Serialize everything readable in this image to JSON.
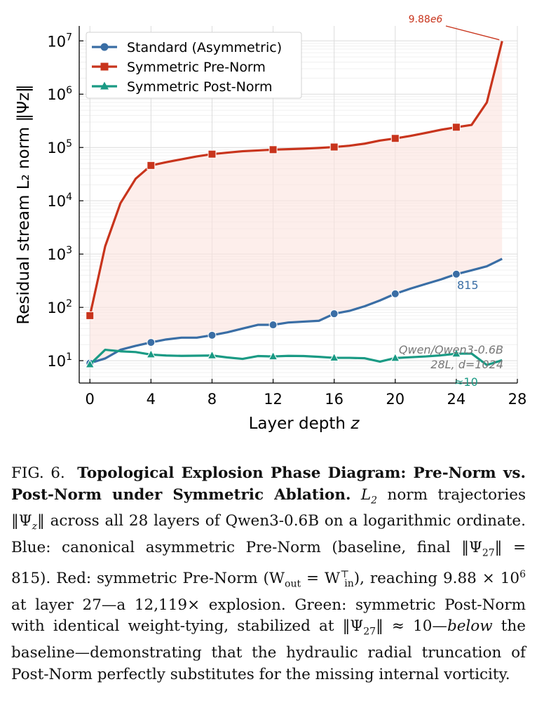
{
  "chart_data": {
    "type": "line",
    "xlabel": "Layer depth z",
    "ylabel": "Residual stream L₂ norm ‖Ψz‖",
    "yscale": "log",
    "xlim": [
      -0.7,
      28.0
    ],
    "ylim_log10": [
      0.58,
      7.28
    ],
    "x_ticks": [
      0,
      4,
      8,
      12,
      16,
      20,
      24,
      28
    ],
    "x_tick_labels": [
      "0",
      "4",
      "8",
      "12",
      "16",
      "20",
      "24",
      "28"
    ],
    "y_ticks": [
      10,
      100,
      1000,
      10000,
      100000,
      1000000,
      10000000
    ],
    "y_tick_labels": [
      {
        "base": "10",
        "exp": "1"
      },
      {
        "base": "10",
        "exp": "2"
      },
      {
        "base": "10",
        "exp": "3"
      },
      {
        "base": "10",
        "exp": "4"
      },
      {
        "base": "10",
        "exp": "5"
      },
      {
        "base": "10",
        "exp": "6"
      },
      {
        "base": "10",
        "exp": "7"
      }
    ],
    "grid": true,
    "legend_position": "top-left",
    "series": [
      {
        "name": "Standard (Asymmetric)",
        "color": "#3a6ea5",
        "marker": "circle",
        "marker_every": 4,
        "x": [
          0,
          1,
          2,
          3,
          4,
          5,
          6,
          7,
          8,
          9,
          10,
          11,
          12,
          13,
          14,
          15,
          16,
          17,
          18,
          19,
          20,
          21,
          22,
          23,
          24,
          25,
          26,
          27
        ],
        "y": [
          9,
          11,
          16,
          19,
          22,
          25,
          27,
          27,
          30,
          34,
          40,
          47,
          47,
          52,
          54,
          56,
          76,
          86,
          105,
          135,
          180,
          225,
          275,
          335,
          420,
          495,
          590,
          815
        ]
      },
      {
        "name": "Symmetric Pre-Norm",
        "color": "#c8341c",
        "marker": "square",
        "marker_every": 4,
        "x": [
          0,
          1,
          2,
          3,
          4,
          5,
          6,
          7,
          8,
          9,
          10,
          11,
          12,
          13,
          14,
          15,
          16,
          17,
          18,
          19,
          20,
          21,
          22,
          23,
          24,
          25,
          26,
          27
        ],
        "y": [
          70,
          1400,
          9000,
          26000,
          46000,
          53000,
          60000,
          68000,
          75000,
          80000,
          85000,
          88000,
          91000,
          93000,
          95000,
          98000,
          102000,
          108000,
          118000,
          135000,
          148000,
          165000,
          188000,
          215000,
          240000,
          265000,
          700000,
          9880000
        ]
      },
      {
        "name": "Symmetric Post-Norm",
        "color": "#1a9a84",
        "marker": "triangle",
        "marker_every": 4,
        "x": [
          0,
          1,
          2,
          3,
          4,
          5,
          6,
          7,
          8,
          9,
          10,
          11,
          12,
          13,
          14,
          15,
          16,
          17,
          18,
          19,
          20,
          21,
          22,
          23,
          24,
          25,
          26,
          27
        ],
        "y": [
          8.5,
          16,
          15,
          14.5,
          13,
          12.5,
          12.3,
          12.4,
          12.5,
          11.5,
          10.8,
          12.2,
          12.0,
          12.3,
          12.2,
          11.8,
          11.3,
          11.3,
          11.1,
          9.6,
          11.2,
          11.6,
          12.0,
          12.6,
          13.5,
          13.6,
          8.3,
          10.2
        ]
      }
    ],
    "annotations": {
      "peak_label": "9.88e6",
      "peak_label_base": "9.88",
      "peak_label_exp": "e6",
      "standard_final_label": "815",
      "post_norm_final_label": "≈10",
      "model_label_line1": "Qwen/Qwen3-0.6B",
      "model_label_line2": "28L, d=1024"
    }
  },
  "caption": {
    "label": "FIG. 6.",
    "title": "Topological Explosion Phase Diagram: Pre-Norm vs. Post-Norm under Symmetric Ablation.",
    "body_1": "norm trajectories ‖Ψ",
    "body_2": "‖ across all 28 layers of Qwen3-0.6B on a logarithmic ordinate. Blue: canonical asymmetric Pre-Norm (baseline, final ‖Ψ",
    "body_3": "‖ = 815). Red: symmetric Pre-Norm (W",
    "body_4": " = W",
    "body_5": "), reaching 9.88 × 10",
    "body_6": " at layer 27—a 12,119× explosion. Green: symmetric Post-Norm with identical weight-tying, stabilized at ‖Ψ",
    "body_7": "‖ ≈ 10—",
    "body_emph": "below",
    "body_8": " the baseline—demonstrating that the hydraulic radial truncation of Post-Norm perfectly substitutes for the missing internal vorticity."
  }
}
